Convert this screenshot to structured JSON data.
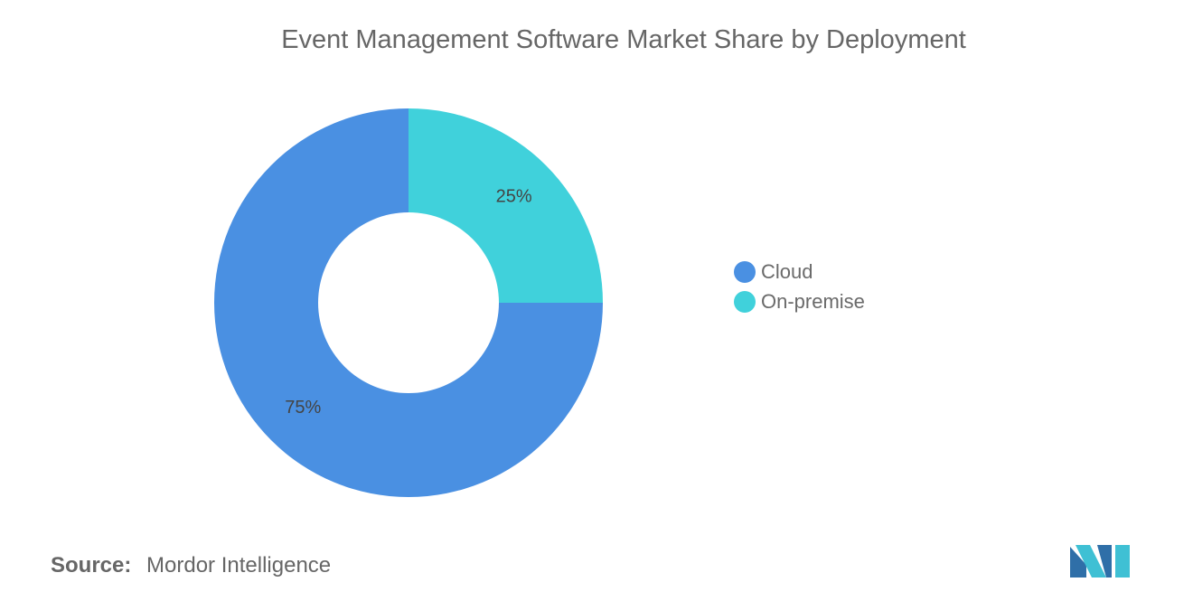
{
  "chart_data": {
    "type": "pie",
    "variant": "donut",
    "title": "Event Management Software Market Share by Deployment",
    "series": [
      {
        "name": "Cloud",
        "value": 75,
        "label": "75%",
        "color": "#4A90E2"
      },
      {
        "name": "On-premise",
        "value": 25,
        "label": "25%",
        "color": "#40D1DB"
      }
    ],
    "legend_position": "right"
  },
  "source": {
    "label": "Source:",
    "text": "Mordor Intelligence"
  },
  "logo": {
    "icon": "mordor-intelligence-logo-icon",
    "colors": [
      "#2F6FA8",
      "#3FC0D4"
    ]
  }
}
